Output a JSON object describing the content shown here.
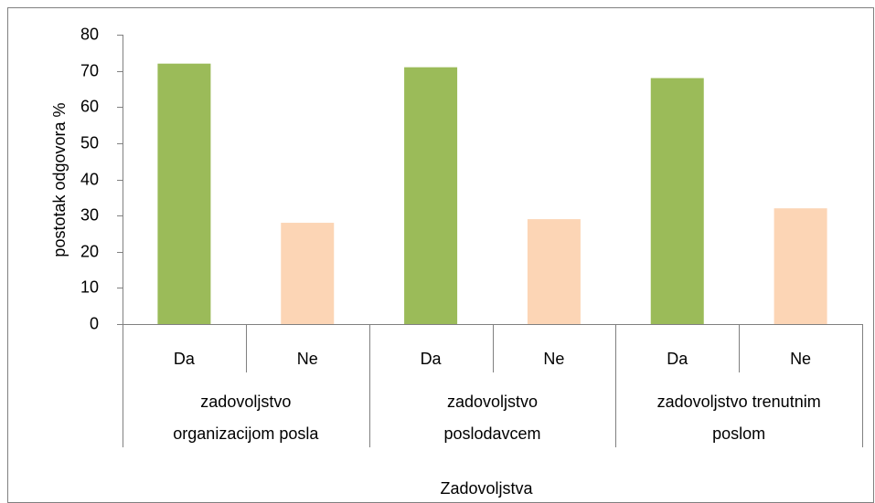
{
  "chart_data": {
    "type": "bar",
    "ylabel": "postotak odgovora %",
    "xlabel": "Zadovoljstva",
    "categories": [
      "Da",
      "Ne",
      "Da",
      "Ne",
      "Da",
      "Ne"
    ],
    "groups": [
      [
        "zadovoljstvo",
        "organizacijom posla"
      ],
      [
        "zadovoljstvo",
        "poslodavcem"
      ],
      [
        "zadovoljstvo trenutnim",
        "poslom"
      ]
    ],
    "values": [
      72,
      28,
      71,
      29,
      68,
      32
    ],
    "colors": [
      "#9bbb59",
      "#fcd5b5",
      "#9bbb59",
      "#fcd5b5",
      "#9bbb59",
      "#fcd5b5"
    ],
    "ylim": [
      0,
      80
    ],
    "yticks": [
      0,
      10,
      20,
      30,
      40,
      50,
      60,
      70,
      80
    ],
    "grid": false
  }
}
